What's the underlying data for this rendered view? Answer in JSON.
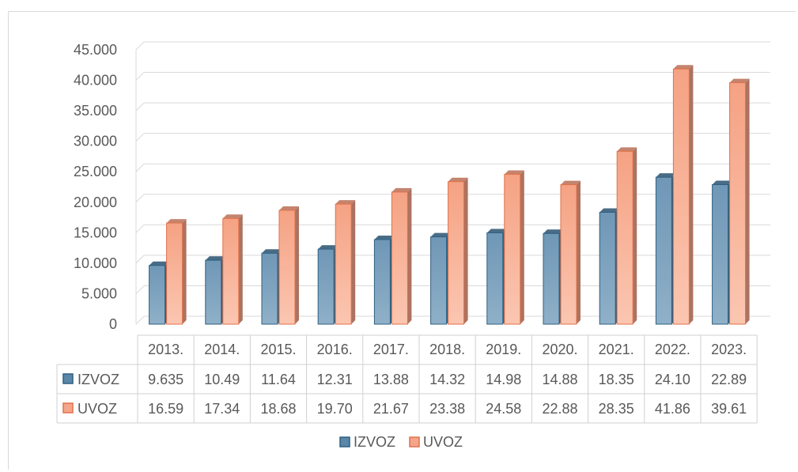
{
  "chart_data": {
    "type": "bar",
    "categories": [
      "2013.",
      "2014.",
      "2015.",
      "2016.",
      "2017.",
      "2018.",
      "2019.",
      "2020.",
      "2021.",
      "2022.",
      "2023."
    ],
    "series": [
      {
        "name": "IZVOZ",
        "values": [
          9635,
          10490,
          11640,
          12310,
          13880,
          14320,
          14980,
          14880,
          18350,
          24100,
          22890
        ],
        "table_labels": [
          "9.635",
          "10.49",
          "11.64",
          "12.31",
          "13.88",
          "14.32",
          "14.98",
          "14.88",
          "18.35",
          "24.10",
          "22.89"
        ],
        "color": "#5b87a8"
      },
      {
        "name": "UVOZ",
        "values": [
          16590,
          17340,
          18680,
          19700,
          21670,
          23380,
          24580,
          22880,
          28350,
          41860,
          39610
        ],
        "table_labels": [
          "16.59",
          "17.34",
          "18.68",
          "19.70",
          "21.67",
          "23.38",
          "24.58",
          "22.88",
          "28.35",
          "41.86",
          "39.61"
        ],
        "color": "#f5a58a"
      }
    ],
    "y_ticks": [
      "0",
      "5.000",
      "10.000",
      "15.000",
      "20.000",
      "25.000",
      "30.000",
      "35.000",
      "40.000",
      "45.000"
    ],
    "ylim": [
      0,
      45000
    ],
    "grid": true,
    "legend_position": "bottom",
    "data_table": true
  }
}
